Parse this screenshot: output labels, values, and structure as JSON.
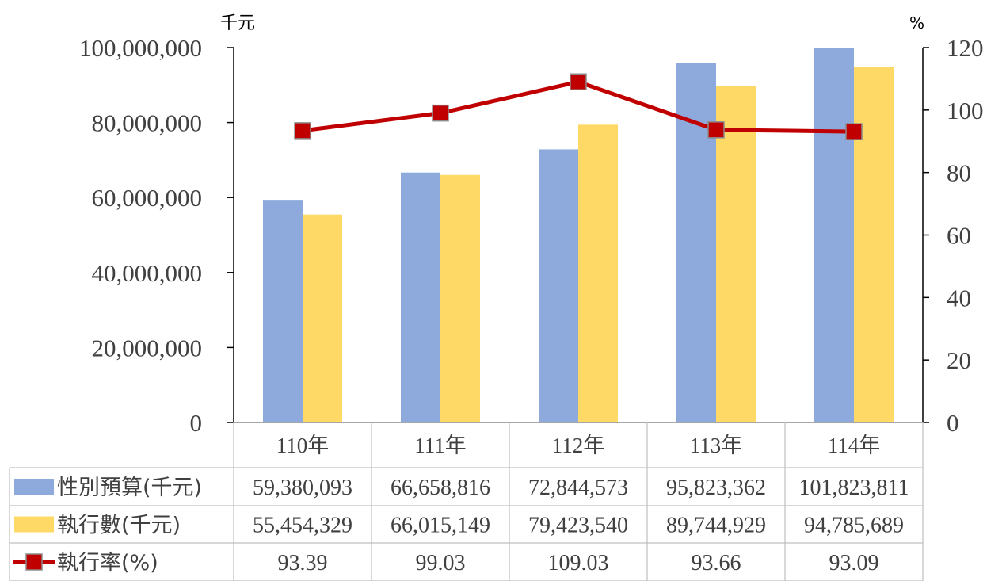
{
  "chart_data": {
    "type": "bar",
    "categories": [
      "110年",
      "111年",
      "112年",
      "113年",
      "114年"
    ],
    "series": [
      {
        "name": "性別預算(千元)",
        "kind": "bar",
        "axis": "left",
        "color": "#8EA9DB",
        "values": [
          59380093,
          66658816,
          72844573,
          95823362,
          101823811
        ]
      },
      {
        "name": "執行數(千元)",
        "kind": "bar",
        "axis": "left",
        "color": "#FFD966",
        "values": [
          55454329,
          66015149,
          79423540,
          89744929,
          94785689
        ]
      },
      {
        "name": "執行率(%)",
        "kind": "line",
        "axis": "right",
        "color": "#C00000",
        "marker": "square",
        "values": [
          93.39,
          99.03,
          109.03,
          93.66,
          93.09
        ]
      }
    ],
    "table_values": [
      [
        "59,380,093",
        "66,658,816",
        "72,844,573",
        "95,823,362",
        "101,823,811"
      ],
      [
        "55,454,329",
        "66,015,149",
        "79,423,540",
        "89,744,929",
        "94,785,689"
      ],
      [
        "93.39",
        "99.03",
        "109.03",
        "93.66",
        "93.09"
      ]
    ],
    "y_left": {
      "unit_label": "千元",
      "ylim": [
        0,
        100000000
      ],
      "ticks": [
        0,
        20000000,
        40000000,
        60000000,
        80000000,
        100000000
      ],
      "tick_labels": [
        "0",
        "20,000,000",
        "40,000,000",
        "60,000,000",
        "80,000,000",
        "100,000,000"
      ]
    },
    "y_right": {
      "unit_label": "%",
      "ylim": [
        0,
        120
      ],
      "ticks": [
        0,
        20,
        40,
        60,
        80,
        100,
        120
      ],
      "tick_labels": [
        "0",
        "20",
        "40",
        "60",
        "80",
        "100",
        "120"
      ]
    },
    "grid": false,
    "legend": "data-table"
  }
}
